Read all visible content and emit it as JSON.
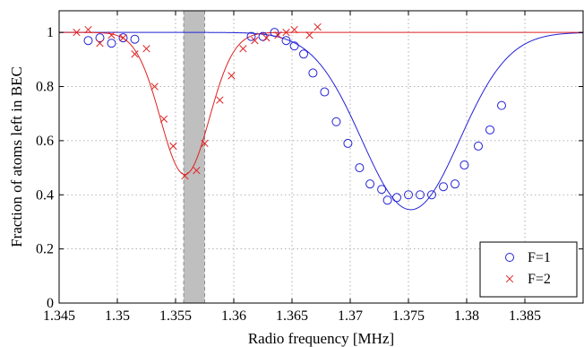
{
  "chart_data": {
    "type": "scatter",
    "xlabel": "Radio frequency [MHz]",
    "ylabel": "Fraction of atoms left in BEC",
    "xlim": [
      1.345,
      1.39
    ],
    "ylim": [
      0,
      1.08
    ],
    "xticks": [
      1.345,
      1.35,
      1.355,
      1.36,
      1.365,
      1.37,
      1.375,
      1.38,
      1.385
    ],
    "xtick_labels": [
      "1.345",
      "1.35",
      "1.355",
      "1.36",
      "1.365",
      "1.37",
      "1.375",
      "1.38",
      "1.385"
    ],
    "yticks": [
      0,
      0.2,
      0.4,
      0.6,
      0.8,
      1
    ],
    "ytick_labels": [
      "0",
      "0.2",
      "0.4",
      "0.6",
      "0.8",
      "1"
    ],
    "grid": "dotted",
    "legend_position": "bottom-right",
    "shaded_band": {
      "x": [
        1.3557,
        1.3575
      ],
      "color": "#bfbfbf"
    },
    "series": [
      {
        "name": "F=1",
        "marker": "circle",
        "color": "#2323d6",
        "points": [
          [
            1.3475,
            0.97
          ],
          [
            1.3485,
            0.98
          ],
          [
            1.3495,
            0.96
          ],
          [
            1.3505,
            0.98
          ],
          [
            1.3515,
            0.975
          ],
          [
            1.3615,
            0.985
          ],
          [
            1.3625,
            0.985
          ],
          [
            1.3635,
            1.0
          ],
          [
            1.3645,
            0.97
          ],
          [
            1.3652,
            0.95
          ],
          [
            1.366,
            0.92
          ],
          [
            1.3668,
            0.85
          ],
          [
            1.3678,
            0.78
          ],
          [
            1.3688,
            0.67
          ],
          [
            1.3698,
            0.59
          ],
          [
            1.3708,
            0.5
          ],
          [
            1.3717,
            0.44
          ],
          [
            1.3727,
            0.42
          ],
          [
            1.3732,
            0.38
          ],
          [
            1.374,
            0.39
          ],
          [
            1.375,
            0.4
          ],
          [
            1.376,
            0.4
          ],
          [
            1.377,
            0.4
          ],
          [
            1.378,
            0.43
          ],
          [
            1.379,
            0.44
          ],
          [
            1.3798,
            0.51
          ],
          [
            1.381,
            0.58
          ],
          [
            1.382,
            0.64
          ],
          [
            1.383,
            0.73
          ]
        ],
        "fit": {
          "center": 1.3752,
          "depth": 0.655,
          "sigma": 0.0042,
          "color": "#2323d6"
        }
      },
      {
        "name": "F=2",
        "marker": "x",
        "color": "#e02020",
        "points": [
          [
            1.3465,
            1.0
          ],
          [
            1.3475,
            1.01
          ],
          [
            1.3485,
            0.96
          ],
          [
            1.3495,
            0.99
          ],
          [
            1.3505,
            0.98
          ],
          [
            1.3515,
            0.92
          ],
          [
            1.3525,
            0.94
          ],
          [
            1.3532,
            0.8
          ],
          [
            1.354,
            0.68
          ],
          [
            1.3548,
            0.58
          ],
          [
            1.3558,
            0.47
          ],
          [
            1.3568,
            0.49
          ],
          [
            1.3575,
            0.59
          ],
          [
            1.3588,
            0.75
          ],
          [
            1.3598,
            0.84
          ],
          [
            1.3608,
            0.94
          ],
          [
            1.3618,
            0.97
          ],
          [
            1.3628,
            0.98
          ],
          [
            1.3638,
            0.99
          ],
          [
            1.3645,
            1.0
          ],
          [
            1.3652,
            1.01
          ],
          [
            1.3665,
            0.99
          ],
          [
            1.3672,
            1.02
          ]
        ],
        "fit": {
          "center": 1.3558,
          "depth": 0.525,
          "sigma": 0.0021,
          "color": "#e02020"
        }
      }
    ]
  }
}
